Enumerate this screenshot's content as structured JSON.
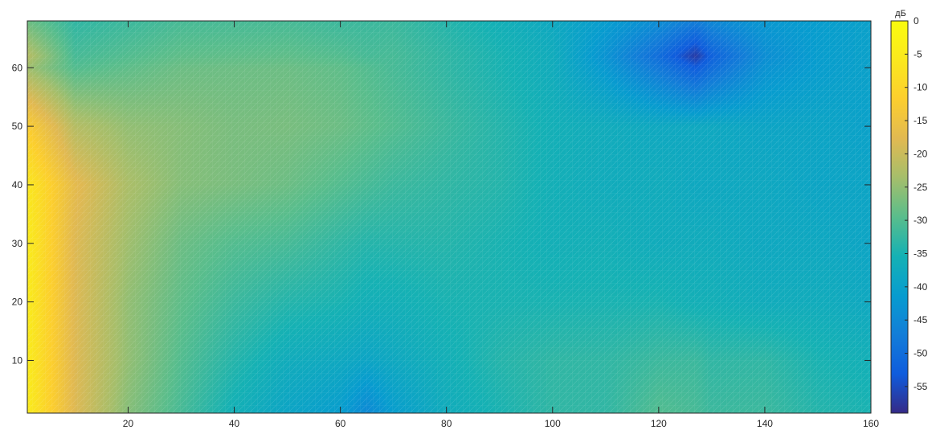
{
  "chart_data": {
    "type": "heatmap",
    "title": "",
    "xlabel": "",
    "ylabel": "",
    "xlim": [
      1,
      160
    ],
    "ylim": [
      1,
      68
    ],
    "x_ticks": [
      20,
      40,
      60,
      80,
      100,
      120,
      140,
      160
    ],
    "y_ticks": [
      10,
      20,
      30,
      40,
      50,
      60
    ],
    "grid": false,
    "colormap": "parula",
    "colorbar": {
      "unit_label": "дБ",
      "range": [
        -59,
        0
      ],
      "ticks": [
        0,
        -5,
        -10,
        -15,
        -20,
        -25,
        -30,
        -35,
        -40,
        -45,
        -50,
        -55
      ],
      "location": "right"
    },
    "surface_values": {
      "x": [
        1,
        10,
        20,
        30,
        40,
        50,
        60,
        65,
        70,
        80,
        90,
        100,
        110,
        120,
        127,
        130,
        140,
        150,
        160
      ],
      "y": [
        1,
        10,
        20,
        30,
        40,
        50,
        60,
        62,
        68
      ],
      "z": [
        [
          -5,
          -18,
          -26,
          -31,
          -36,
          -39,
          -41,
          -45,
          -41,
          -37,
          -35,
          -33,
          -33,
          -30,
          -31,
          -32,
          -32,
          -34,
          -35
        ],
        [
          -5,
          -18,
          -25,
          -30,
          -34,
          -37,
          -38,
          -39,
          -38,
          -36,
          -34,
          -33,
          -33,
          -32,
          -32,
          -33,
          -33,
          -35,
          -36
        ],
        [
          -5,
          -18,
          -25,
          -29,
          -32,
          -34,
          -35,
          -36,
          -36,
          -35,
          -35,
          -35,
          -35,
          -35,
          -36,
          -36,
          -37,
          -37,
          -38
        ],
        [
          -5,
          -18,
          -24,
          -28,
          -30,
          -31,
          -33,
          -34,
          -34,
          -34,
          -35,
          -36,
          -36,
          -37,
          -37,
          -37,
          -38,
          -38,
          -39
        ],
        [
          -6,
          -17,
          -23,
          -26,
          -27,
          -28,
          -30,
          -31,
          -32,
          -33,
          -34,
          -36,
          -37,
          -37,
          -38,
          -38,
          -38,
          -39,
          -39
        ],
        [
          -12,
          -22,
          -25,
          -26,
          -27,
          -27,
          -28,
          -29,
          -30,
          -32,
          -34,
          -36,
          -37,
          -38,
          -38,
          -38,
          -39,
          -39,
          -40
        ],
        [
          -24,
          -30,
          -29,
          -28,
          -28,
          -28,
          -29,
          -30,
          -31,
          -33,
          -35,
          -37,
          -42,
          -48,
          -53,
          -50,
          -43,
          -41,
          -40
        ],
        [
          -22,
          -31,
          -30,
          -29,
          -29,
          -29,
          -30,
          -31,
          -31,
          -33,
          -35,
          -37,
          -43,
          -50,
          -57,
          -52,
          -44,
          -41,
          -40
        ],
        [
          -28,
          -33,
          -32,
          -31,
          -31,
          -31,
          -32,
          -32,
          -32,
          -34,
          -36,
          -38,
          -41,
          -44,
          -47,
          -45,
          -42,
          -41,
          -40
        ]
      ]
    }
  }
}
